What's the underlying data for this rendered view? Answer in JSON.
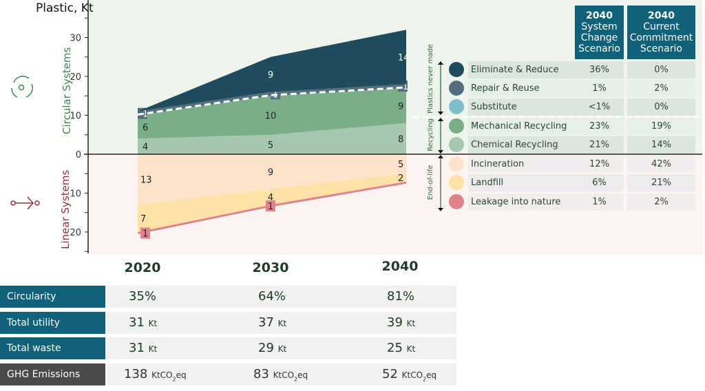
{
  "chart_data": {
    "type": "area",
    "title": "Plastic, Kt",
    "x": [
      "2020",
      "2030",
      "2040"
    ],
    "yticks_up": [
      0,
      10,
      20,
      30
    ],
    "yticks_down": [
      10,
      20
    ],
    "upper_label": "Circular Systems",
    "lower_label": "Linear Systems",
    "upper_series": [
      {
        "name": "Chemical Recycling",
        "values": [
          4,
          5,
          8
        ],
        "color": "#a5c7b0",
        "labels": [
          "4",
          "5",
          "8"
        ]
      },
      {
        "name": "Mechanical Recycling",
        "values": [
          6,
          10,
          9
        ],
        "color": "#7aae88",
        "labels": [
          "6",
          "10",
          "9"
        ]
      },
      {
        "name": "Repair & Reuse",
        "values": [
          1,
          1,
          1
        ],
        "color": "#536f7e",
        "labels": [
          "1",
          "1",
          "1"
        ]
      },
      {
        "name": "Eliminate & Reduce",
        "values": [
          0,
          9,
          14
        ],
        "color": "#1f4d5e",
        "labels": [
          "",
          "9",
          "14"
        ]
      }
    ],
    "lower_series": [
      {
        "name": "Incineration",
        "values": [
          13,
          9,
          5
        ],
        "color": "#fde3ca",
        "labels": [
          "13",
          "9",
          "5"
        ]
      },
      {
        "name": "Landfill",
        "values": [
          7,
          4,
          2
        ],
        "color": "#fde1a6",
        "labels": [
          "7",
          "4",
          "2"
        ]
      },
      {
        "name": "Leakage into nature",
        "values": [
          1,
          1,
          1
        ],
        "color": "#e0828a",
        "labels": [
          "1",
          "1",
          "1"
        ]
      }
    ]
  },
  "legend": {
    "col_headers": [
      [
        "2040",
        "System",
        "Change",
        "Scenario"
      ],
      [
        "2040",
        "Current",
        "Commitment",
        "Scenario"
      ]
    ],
    "groups": [
      "Plastics never made",
      "Recycling",
      "End-of-life"
    ],
    "rows": [
      {
        "label": "Eliminate & Reduce",
        "c1": "36%",
        "c2": "0%",
        "color": "#1f4d5e"
      },
      {
        "label": "Repair & Reuse",
        "c1": "1%",
        "c2": "2%",
        "color": "#536f7e"
      },
      {
        "label": "Substitute",
        "c1": "<1%",
        "c2": "0%",
        "color": "#7fbccc"
      },
      {
        "label": "Mechanical Recycling",
        "c1": "23%",
        "c2": "19%",
        "color": "#7aae88"
      },
      {
        "label": "Chemical Recycling",
        "c1": "21%",
        "c2": "14%",
        "color": "#a5c7b0"
      },
      {
        "label": "Incineration",
        "c1": "12%",
        "c2": "42%",
        "color": "#fde3ca"
      },
      {
        "label": "Landfill",
        "c1": "6%",
        "c2": "21%",
        "color": "#fde1a6"
      },
      {
        "label": "Leakage into nature",
        "c1": "1%",
        "c2": "2%",
        "color": "#e0828a"
      }
    ]
  },
  "summary": {
    "years": [
      "2020",
      "2030",
      "2040"
    ],
    "rows": [
      {
        "label": "Circularity",
        "values": [
          "35%",
          "64%",
          "81%"
        ],
        "unit": ""
      },
      {
        "label": "Total utility demand*",
        "values": [
          "31",
          "37",
          "39"
        ],
        "unit": "Kt"
      },
      {
        "label": "Total waste",
        "values": [
          "31",
          "29",
          "25"
        ],
        "unit": "Kt"
      },
      {
        "label": "GHG Emissions",
        "values": [
          "138",
          "83",
          "52"
        ],
        "unit": "KtCO2eq",
        "unit_main": "KtCO",
        "unit_sub": "2",
        "unit_end": "eq"
      }
    ]
  }
}
